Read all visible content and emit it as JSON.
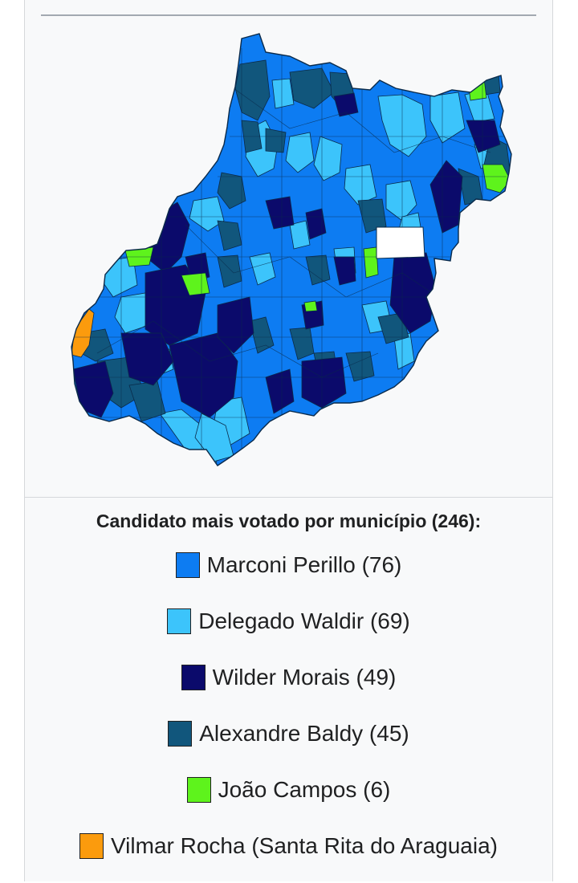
{
  "legend": {
    "title": "Candidato mais votado por município (246):",
    "items": [
      {
        "label": "Marconi Perillo (76)",
        "color": "#0d7cf2"
      },
      {
        "label": "Delegado Waldir (69)",
        "color": "#3cc4fb"
      },
      {
        "label": "Wilder Morais (49)",
        "color": "#0b0a6b"
      },
      {
        "label": "Alexandre Baldy (45)",
        "color": "#11567c"
      },
      {
        "label": "João Campos (6)",
        "color": "#5ef31c"
      },
      {
        "label": "Vilmar Rocha (Santa Rita do Araguaia)",
        "color": "#fb9b0d"
      }
    ]
  },
  "map": {
    "blank_region_color": "#ffffff",
    "border_color": "#0a2a4a"
  }
}
